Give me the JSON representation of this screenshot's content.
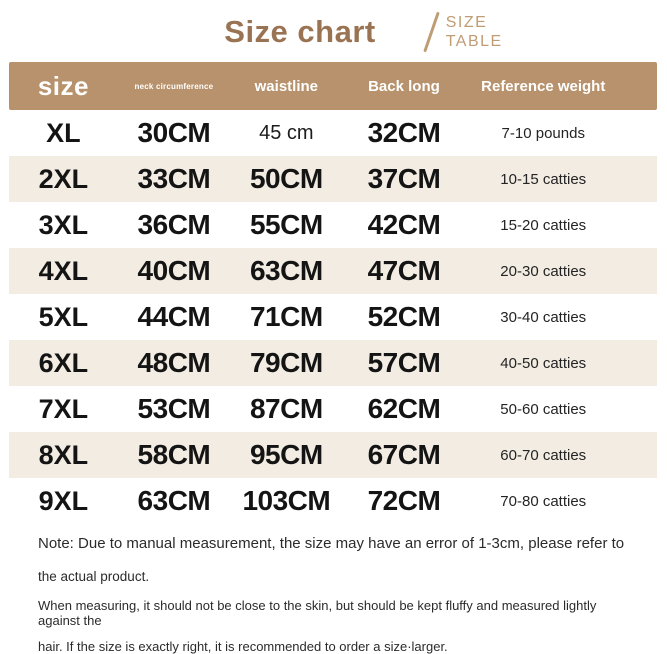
{
  "title": {
    "main": "Size chart",
    "sub_line1": "SIZE",
    "sub_line2": "TABLE"
  },
  "colors": {
    "header_bg": "#b7926c",
    "row_alt_bg": "#f2ece2",
    "title_brown": "#9a7352",
    "subtitle_tan": "#c09c75",
    "text_dark": "#141414"
  },
  "table": {
    "headers": {
      "size": "size",
      "neck": "neck circumference",
      "waist": "waistline",
      "back": "Back long",
      "weight": "Reference weight"
    },
    "rows": [
      {
        "size": "XL",
        "neck": "30CM",
        "waist": "45 cm",
        "back": "32CM",
        "weight": "7-10 pounds"
      },
      {
        "size": "2XL",
        "neck": "33CM",
        "waist": "50CM",
        "back": "37CM",
        "weight": "10-15 catties"
      },
      {
        "size": "3XL",
        "neck": "36CM",
        "waist": "55CM",
        "back": "42CM",
        "weight": "15-20 catties"
      },
      {
        "size": "4XL",
        "neck": "40CM",
        "waist": "63CM",
        "back": "47CM",
        "weight": "20-30 catties"
      },
      {
        "size": "5XL",
        "neck": "44CM",
        "waist": "71CM",
        "back": "52CM",
        "weight": "30-40 catties"
      },
      {
        "size": "6XL",
        "neck": "48CM",
        "waist": "79CM",
        "back": "57CM",
        "weight": "40-50 catties"
      },
      {
        "size": "7XL",
        "neck": "53CM",
        "waist": "87CM",
        "back": "62CM",
        "weight": "50-60 catties"
      },
      {
        "size": "8XL",
        "neck": "58CM",
        "waist": "95CM",
        "back": "67CM",
        "weight": "60-70 catties"
      },
      {
        "size": "9XL",
        "neck": "63CM",
        "waist": "103CM",
        "back": "72CM",
        "weight": "70-80 catties"
      }
    ]
  },
  "notes": {
    "line1": "Note: Due to manual measurement, the size may have an error of 1-3cm, please refer to",
    "line2": "the actual product.",
    "line3": "When measuring, it should not be close to the skin, but should be kept fluffy and measured lightly against the",
    "line4": "hair. If the size is exactly right, it is recommended to order a size·larger."
  },
  "chart_data": {
    "type": "table",
    "title": "Size chart",
    "columns": [
      "size",
      "neck circumference",
      "waistline",
      "Back long",
      "Reference weight"
    ],
    "rows": [
      [
        "XL",
        "30CM",
        "45 cm",
        "32CM",
        "7-10 pounds"
      ],
      [
        "2XL",
        "33CM",
        "50CM",
        "37CM",
        "10-15 catties"
      ],
      [
        "3XL",
        "36CM",
        "55CM",
        "42CM",
        "15-20 catties"
      ],
      [
        "4XL",
        "40CM",
        "63CM",
        "47CM",
        "20-30 catties"
      ],
      [
        "5XL",
        "44CM",
        "71CM",
        "52CM",
        "30-40 catties"
      ],
      [
        "6XL",
        "48CM",
        "79CM",
        "57CM",
        "40-50 catties"
      ],
      [
        "7XL",
        "53CM",
        "87CM",
        "62CM",
        "50-60 catties"
      ],
      [
        "8XL",
        "58CM",
        "95CM",
        "67CM",
        "60-70 catties"
      ],
      [
        "9XL",
        "63CM",
        "103CM",
        "72CM",
        "70-80 catties"
      ]
    ],
    "notes": [
      "Note: Due to manual measurement, the size may have an error of 1-3cm, please refer to the actual product.",
      "When measuring, it should not be close to the skin, but should be kept fluffy and measured lightly against the hair. If the size is exactly right, it is recommended to order a size larger."
    ]
  }
}
